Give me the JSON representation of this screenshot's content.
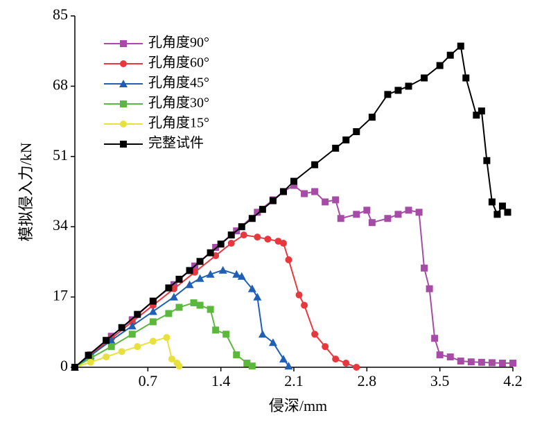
{
  "chart_data": {
    "type": "line",
    "xlabel": "侵深/mm",
    "ylabel": "模拟侵入力/kN",
    "xlim": [
      0,
      4.2
    ],
    "xticks": [
      0.7,
      1.4,
      2.1,
      2.8,
      3.5,
      4.2
    ],
    "ylim": [
      0,
      85
    ],
    "yticks": [
      0,
      17,
      34,
      51,
      68,
      85
    ],
    "legend": "upper left",
    "series": [
      {
        "name": "孔角度90°",
        "color": "#a64ca6",
        "marker": "square",
        "x": [
          0,
          0.15,
          0.35,
          0.55,
          0.75,
          0.95,
          1.15,
          1.35,
          1.55,
          1.75,
          1.9,
          2.0,
          2.1,
          2.2,
          2.3,
          2.4,
          2.5,
          2.55,
          2.7,
          2.8,
          2.85,
          3.0,
          3.1,
          3.2,
          3.3,
          3.35,
          3.4,
          3.45,
          3.5,
          3.6,
          3.7,
          3.8,
          3.9,
          4.0,
          4.1,
          4.2
        ],
        "values": [
          0,
          3,
          7.5,
          11.5,
          16,
          20,
          24.5,
          29,
          33,
          37.5,
          40.5,
          42.5,
          44,
          42,
          42.5,
          40,
          40.5,
          36,
          37,
          38,
          35,
          36,
          37,
          38,
          37.5,
          24,
          19,
          7,
          3,
          2.5,
          1.5,
          1.3,
          1.2,
          1.1,
          1,
          1
        ]
      },
      {
        "name": "孔角度60°",
        "color": "#e8383d",
        "marker": "circle",
        "x": [
          0,
          0.15,
          0.35,
          0.55,
          0.75,
          0.95,
          1.15,
          1.35,
          1.5,
          1.62,
          1.75,
          1.85,
          1.95,
          2.0,
          2.05,
          2.15,
          2.2,
          2.3,
          2.4,
          2.5,
          2.6,
          2.7
        ],
        "values": [
          0,
          3,
          7,
          11,
          15,
          19,
          23,
          27,
          30,
          32,
          31.5,
          31,
          30.5,
          30,
          26,
          17.5,
          15,
          8,
          5,
          2,
          1,
          0
        ]
      },
      {
        "name": "孔角度45°",
        "color": "#1f5fb5",
        "marker": "triangle",
        "x": [
          0,
          0.15,
          0.35,
          0.55,
          0.75,
          0.95,
          1.1,
          1.2,
          1.3,
          1.42,
          1.55,
          1.6,
          1.7,
          1.75,
          1.8,
          1.9,
          2.0,
          2.05
        ],
        "values": [
          0,
          2.8,
          6.5,
          10,
          13.5,
          17,
          20,
          21.5,
          22.5,
          23.5,
          22.5,
          22,
          19,
          17,
          8,
          6,
          2,
          0.3
        ]
      },
      {
        "name": "孔角度30°",
        "color": "#5cb83c",
        "marker": "square",
        "x": [
          0,
          0.15,
          0.35,
          0.55,
          0.75,
          0.9,
          1.0,
          1.14,
          1.2,
          1.3,
          1.35,
          1.45,
          1.55,
          1.65,
          1.7
        ],
        "values": [
          0,
          2.2,
          5,
          8,
          11,
          13,
          14.5,
          15.6,
          15,
          14,
          9,
          8,
          3,
          1,
          0.3
        ]
      },
      {
        "name": "孔角度15°",
        "color": "#e8e03c",
        "marker": "circle",
        "x": [
          0,
          0.15,
          0.3,
          0.45,
          0.6,
          0.75,
          0.88,
          0.93,
          0.98,
          1.0
        ],
        "values": [
          0,
          1.2,
          2.5,
          3.8,
          5,
          6.3,
          7.2,
          2,
          1,
          0.3
        ]
      },
      {
        "name": "完整试件",
        "color": "#000000",
        "marker": "square",
        "x": [
          0,
          0.13,
          0.3,
          0.45,
          0.6,
          0.75,
          0.9,
          1.0,
          1.1,
          1.2,
          1.3,
          1.4,
          1.5,
          1.6,
          1.7,
          1.8,
          1.9,
          2.0,
          2.1,
          2.3,
          2.5,
          2.6,
          2.7,
          2.85,
          3.0,
          3.1,
          3.2,
          3.35,
          3.5,
          3.6,
          3.7,
          3.75,
          3.85,
          3.9,
          3.95,
          4.0,
          4.05,
          4.1,
          4.15
        ],
        "values": [
          0,
          2.9,
          6.5,
          9.6,
          12.8,
          16,
          19.2,
          21.3,
          23.4,
          25.6,
          27.7,
          29.8,
          32,
          34,
          36,
          38.2,
          40.3,
          42.5,
          45,
          49,
          53,
          55,
          57,
          60.5,
          66,
          67,
          68,
          70,
          73,
          75.5,
          77.7,
          70,
          61,
          62,
          50,
          40,
          37,
          39,
          37.5
        ]
      }
    ]
  }
}
